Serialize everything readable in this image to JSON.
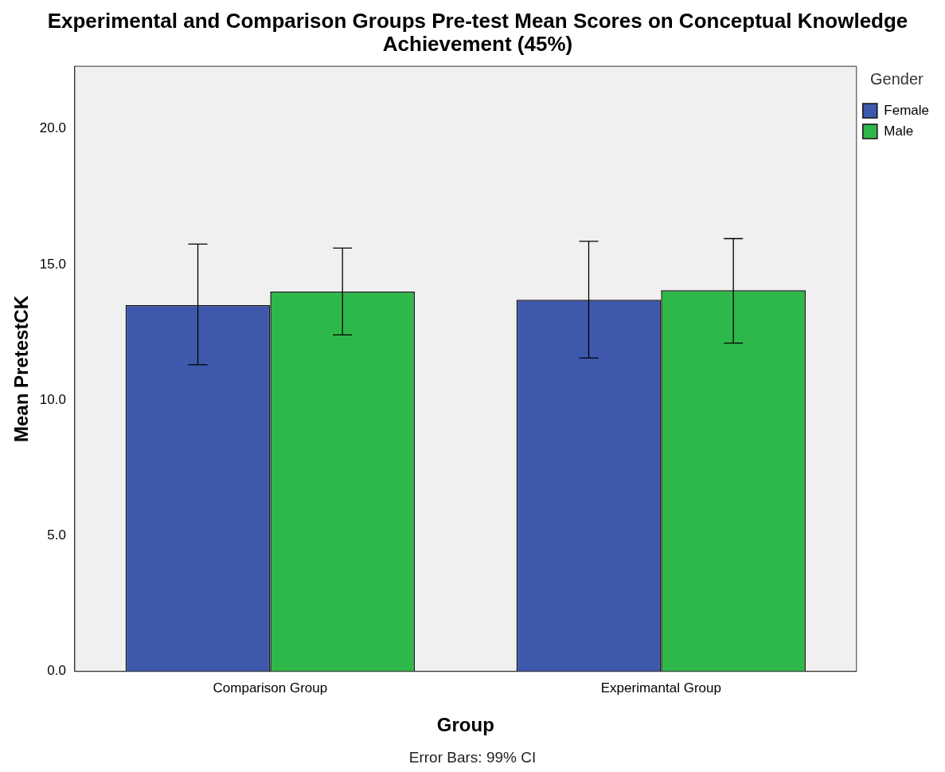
{
  "chart_data": {
    "type": "bar",
    "title": "Experimental and Comparison Groups Pre-test Mean Scores on Conceptual Knowledge Achievement (45%)",
    "xlabel": "Group",
    "ylabel": "Mean PretestCK",
    "legend_title": "Gender",
    "categories": [
      "Comparison Group",
      "Experimantal Group"
    ],
    "series": [
      {
        "name": "Female",
        "color": "#3e58ac",
        "values": [
          13.5,
          13.7
        ],
        "errors": [
          [
            11.3,
            15.75
          ],
          [
            11.55,
            15.85
          ]
        ]
      },
      {
        "name": "Male",
        "color": "#2fb84a",
        "values": [
          14.0,
          14.05
        ],
        "errors": [
          [
            12.4,
            15.6
          ],
          [
            12.1,
            15.95
          ]
        ]
      }
    ],
    "ylim": [
      0,
      22.3
    ],
    "yticks": [
      {
        "value": 0,
        "label": "0.0"
      },
      {
        "value": 5,
        "label": "5.0"
      },
      {
        "value": 10,
        "label": "10.0"
      },
      {
        "value": 15,
        "label": "15.0"
      },
      {
        "value": 20,
        "label": "20.0"
      }
    ],
    "grid": false,
    "legend": "top right",
    "annotations": [
      "Error Bars: 99% CI"
    ]
  }
}
